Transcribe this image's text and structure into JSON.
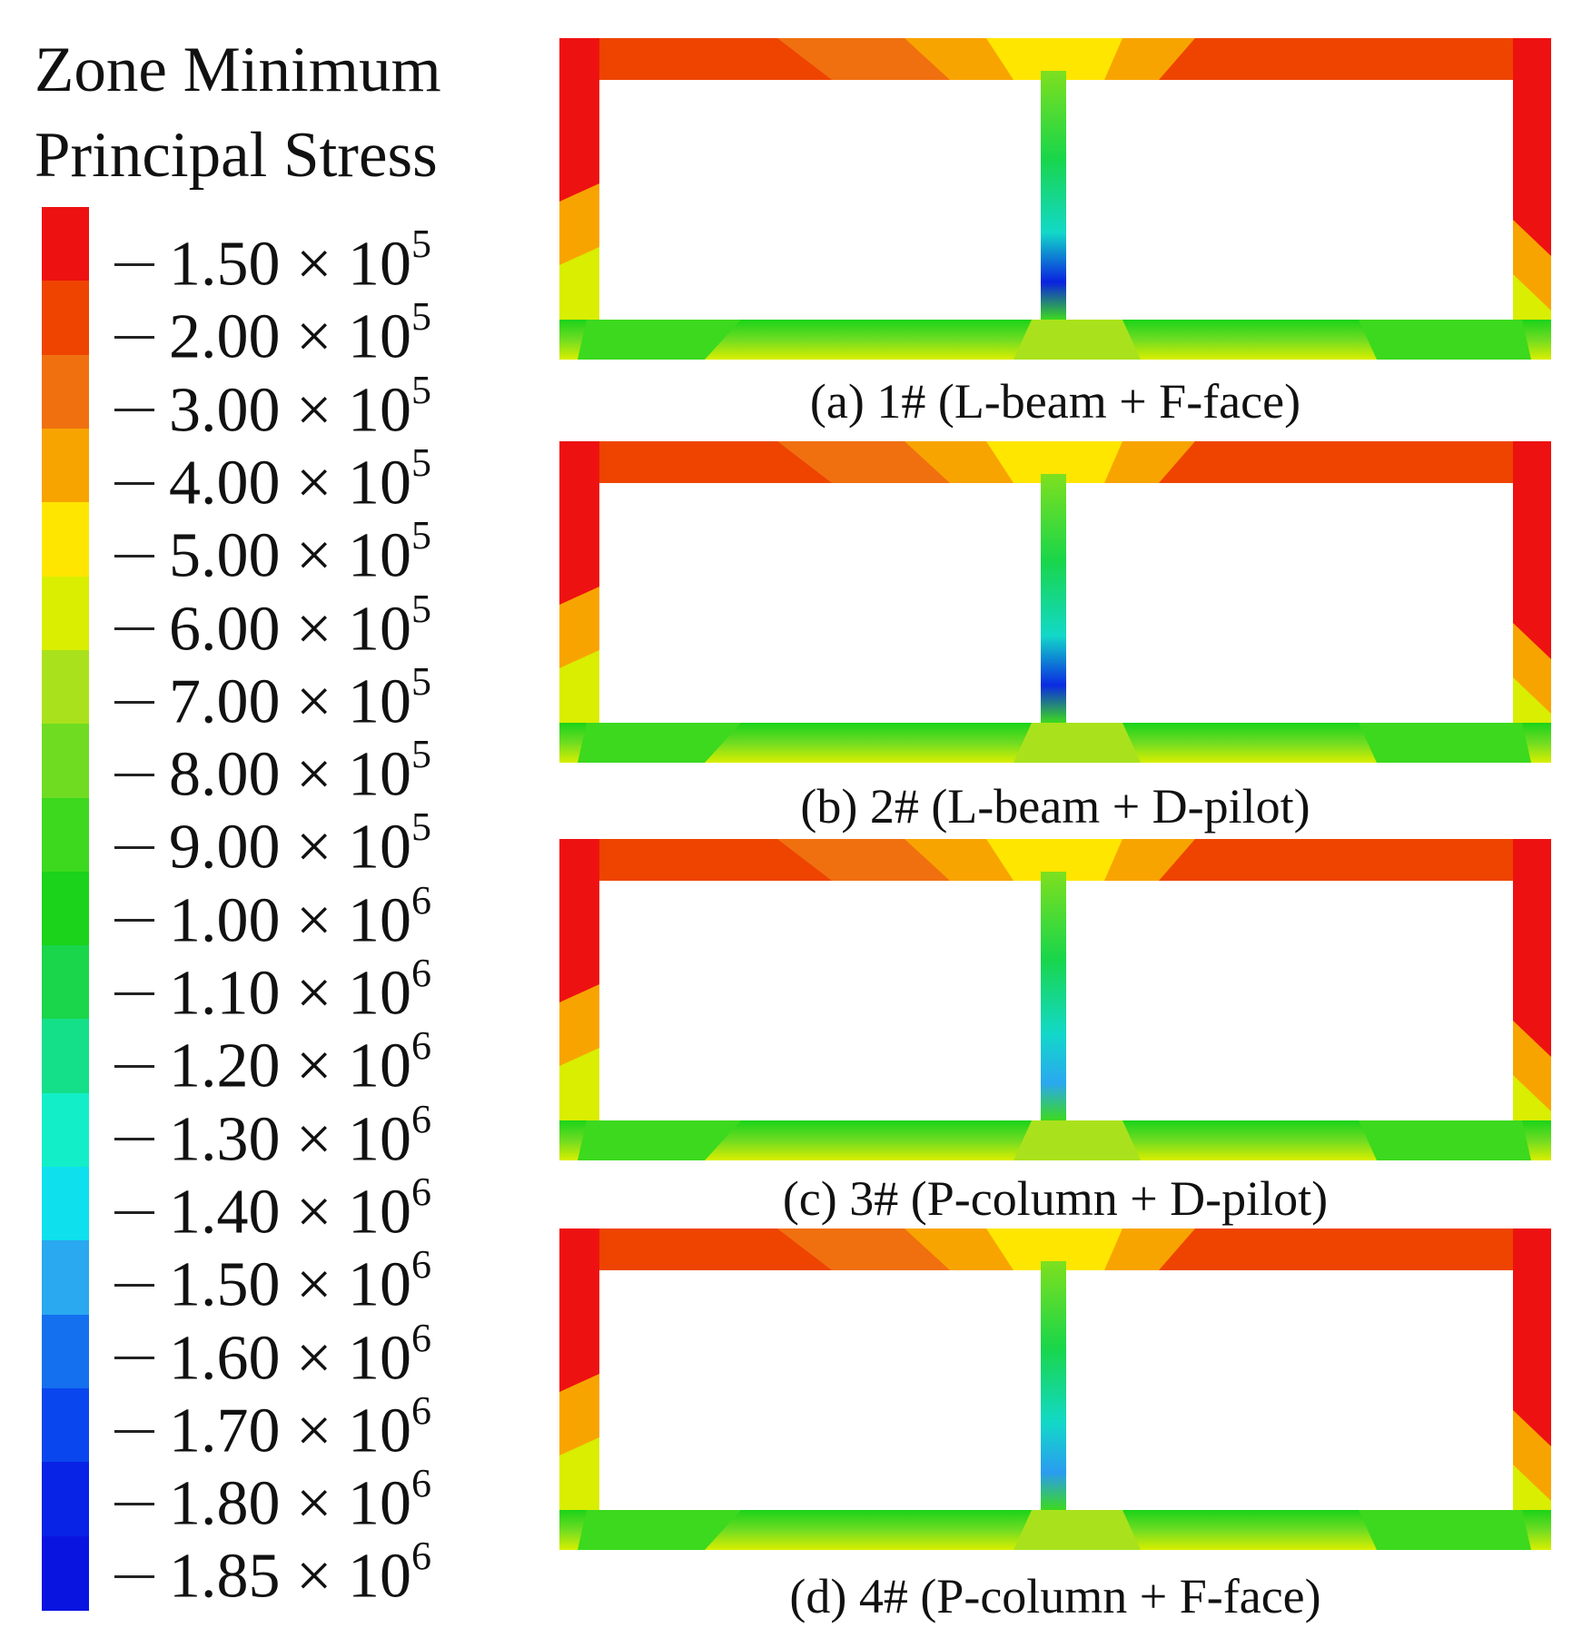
{
  "legend": {
    "title_line1": "Zone Minimum",
    "title_line2": "Principal Stress",
    "levels": [
      {
        "mantissa": "1.50",
        "exp": "5",
        "color": "#ee1111"
      },
      {
        "mantissa": "2.00",
        "exp": "5",
        "color": "#ee4400"
      },
      {
        "mantissa": "3.00",
        "exp": "5",
        "color": "#f07010"
      },
      {
        "mantissa": "4.00",
        "exp": "5",
        "color": "#f8a400"
      },
      {
        "mantissa": "5.00",
        "exp": "5",
        "color": "#ffe600"
      },
      {
        "mantissa": "6.00",
        "exp": "5",
        "color": "#d9ee00"
      },
      {
        "mantissa": "7.00",
        "exp": "5",
        "color": "#a9e21c"
      },
      {
        "mantissa": "8.00",
        "exp": "5",
        "color": "#6fdc22"
      },
      {
        "mantissa": "9.00",
        "exp": "5",
        "color": "#3cd91e"
      },
      {
        "mantissa": "1.00",
        "exp": "6",
        "color": "#1ad31a"
      },
      {
        "mantissa": "1.10",
        "exp": "6",
        "color": "#19d64a"
      },
      {
        "mantissa": "1.20",
        "exp": "6",
        "color": "#14e08a"
      },
      {
        "mantissa": "1.30",
        "exp": "6",
        "color": "#12efc8"
      },
      {
        "mantissa": "1.40",
        "exp": "6",
        "color": "#0ee0ee"
      },
      {
        "mantissa": "1.50",
        "exp": "6",
        "color": "#2aa8f0"
      },
      {
        "mantissa": "1.60",
        "exp": "6",
        "color": "#1470ee"
      },
      {
        "mantissa": "1.70",
        "exp": "6",
        "color": "#0a46ee"
      },
      {
        "mantissa": "1.80",
        "exp": "6",
        "color": "#0822e6"
      },
      {
        "mantissa": "1.85",
        "exp": "6",
        "color": "#0a14e0"
      }
    ]
  },
  "panels": [
    {
      "caption": "(a) 1# (L-beam + F-face)",
      "middle_low_color": "#0a22e0"
    },
    {
      "caption": "(b) 2# (L-beam + D-pilot)",
      "middle_low_color": "#0a2ae2"
    },
    {
      "caption": "(c) 3# (P-column + D-pilot)",
      "middle_low_color": "#2aa8f0"
    },
    {
      "caption": "(d) 4# (P-column + F-face)",
      "middle_low_color": "#2a9cf0"
    }
  ]
}
